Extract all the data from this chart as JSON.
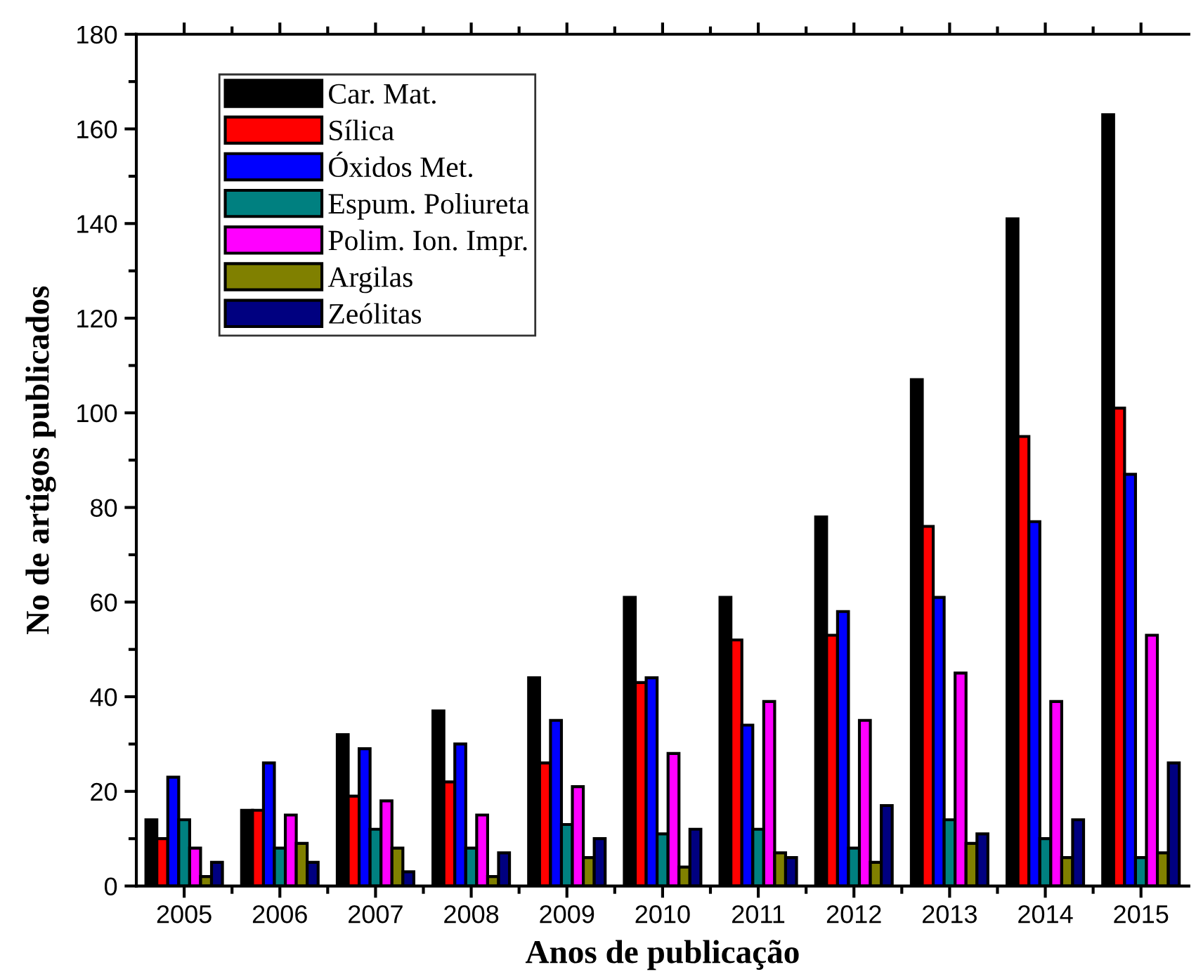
{
  "chart_data": {
    "type": "bar",
    "xlabel": "Anos de publicação",
    "ylabel": "No de artigos publicados",
    "categories": [
      "2005",
      "2006",
      "2007",
      "2008",
      "2009",
      "2010",
      "2011",
      "2012",
      "2013",
      "2014",
      "2015"
    ],
    "series": [
      {
        "name": "Car. Mat.",
        "color": "#000000",
        "values": [
          14,
          16,
          32,
          37,
          44,
          61,
          61,
          78,
          107,
          141,
          163
        ]
      },
      {
        "name": "Sílica",
        "color": "#ff0000",
        "values": [
          10,
          16,
          19,
          22,
          26,
          43,
          52,
          53,
          76,
          95,
          101
        ]
      },
      {
        "name": "Óxidos Met.",
        "color": "#0000ff",
        "values": [
          23,
          26,
          29,
          30,
          35,
          44,
          34,
          58,
          61,
          77,
          87
        ]
      },
      {
        "name": "Espum. Poliureta",
        "color": "#008080",
        "values": [
          14,
          8,
          12,
          8,
          13,
          11,
          12,
          8,
          14,
          10,
          6
        ]
      },
      {
        "name": "Polim. Ion. Impr.",
        "color": "#ff00ff",
        "values": [
          8,
          15,
          18,
          15,
          21,
          28,
          39,
          35,
          45,
          39,
          53
        ]
      },
      {
        "name": "Argilas",
        "color": "#808000",
        "values": [
          2,
          9,
          8,
          2,
          6,
          4,
          7,
          5,
          9,
          6,
          7
        ]
      },
      {
        "name": "Zeólitas",
        "color": "#000080",
        "values": [
          5,
          5,
          3,
          7,
          10,
          12,
          6,
          17,
          11,
          14,
          26
        ]
      }
    ],
    "ylim": [
      0,
      180
    ],
    "yticks": [
      0,
      20,
      40,
      60,
      80,
      100,
      120,
      140,
      160,
      180
    ],
    "grid": false,
    "legend": "top left"
  }
}
